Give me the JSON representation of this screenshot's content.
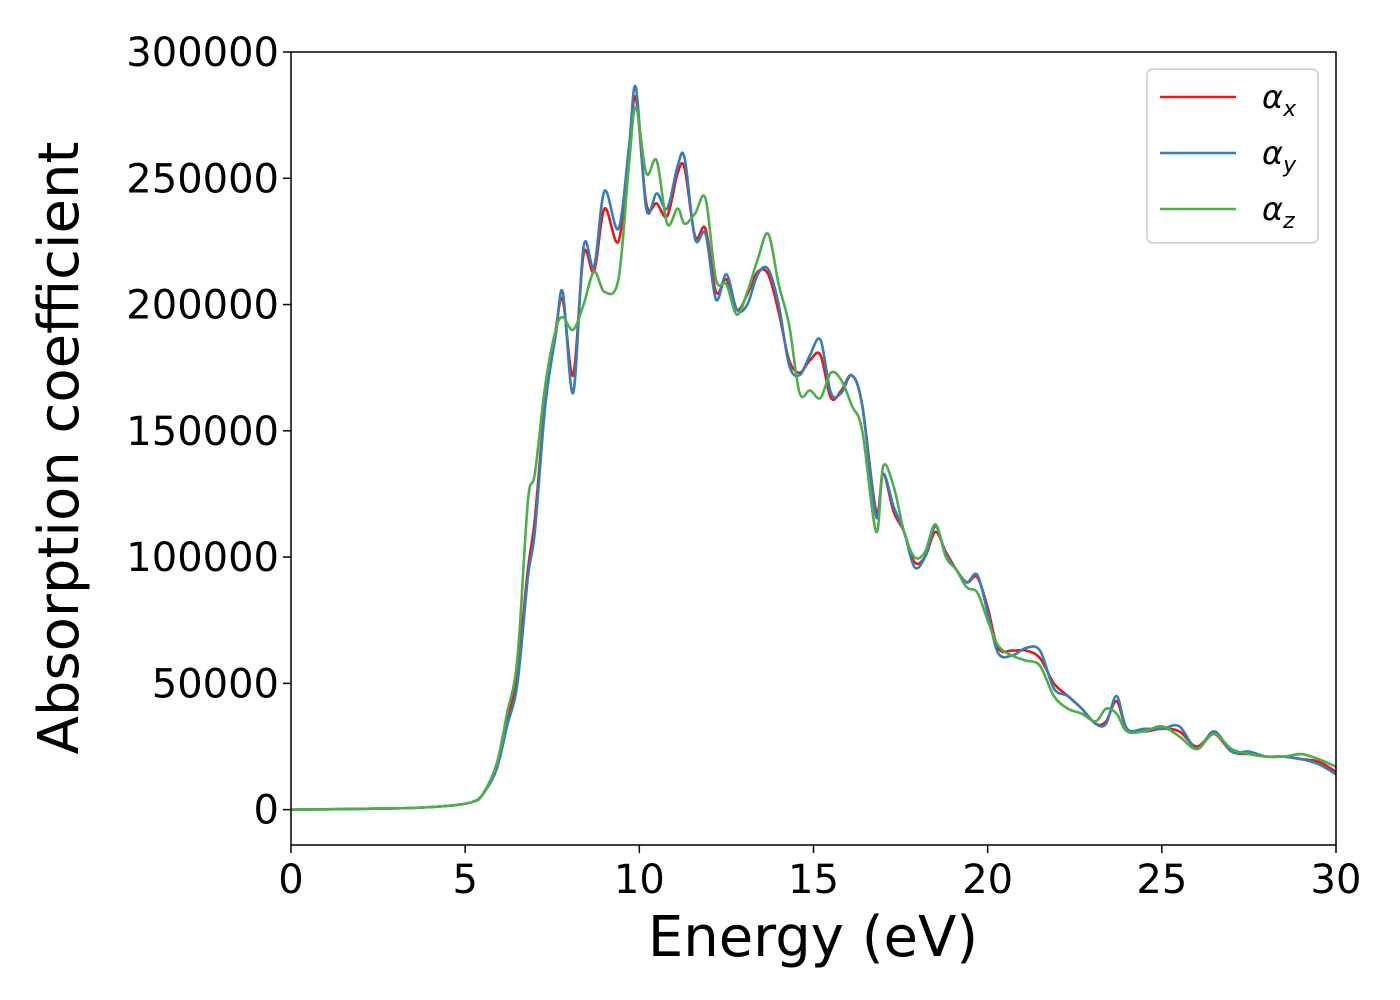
{
  "chart_data": {
    "type": "line",
    "title": "",
    "xlabel": "Energy (eV)",
    "ylabel": "Absorption coefficient",
    "xlim": [
      0,
      30
    ],
    "ylim": [
      -14000,
      300000
    ],
    "grid": false,
    "legend_position": "top-right",
    "x_ticks": [
      "0",
      "5",
      "10",
      "15",
      "20",
      "25",
      "30"
    ],
    "y_ticks": [
      "0",
      "50000",
      "100000",
      "150000",
      "200000",
      "250000",
      "300000"
    ],
    "series": [
      {
        "name": "α",
        "subscript": "x",
        "color": "#e41a1c",
        "x": [
          0,
          3,
          4.5,
          5.2,
          5.5,
          5.9,
          6.2,
          6.5,
          6.8,
          7.0,
          7.3,
          7.6,
          7.8,
          8.1,
          8.4,
          8.7,
          9.0,
          9.4,
          9.7,
          9.9,
          10.2,
          10.5,
          10.8,
          11.1,
          11.3,
          11.6,
          11.9,
          12.2,
          12.5,
          12.8,
          13.1,
          13.4,
          13.7,
          14.0,
          14.3,
          14.6,
          14.9,
          15.2,
          15.5,
          15.8,
          16.1,
          16.4,
          16.8,
          17.0,
          17.3,
          17.6,
          17.9,
          18.2,
          18.5,
          18.8,
          19.1,
          19.4,
          19.7,
          20.0,
          20.3,
          20.7,
          21.1,
          21.5,
          21.9,
          22.3,
          22.7,
          23.1,
          23.4,
          23.7,
          24.0,
          24.5,
          25.0,
          25.5,
          26.0,
          26.5,
          27.0,
          27.5,
          28.0,
          28.5,
          29.0,
          29.5,
          30.0
        ],
        "y": [
          0,
          500,
          1500,
          3000,
          6000,
          16000,
          34000,
          55000,
          95000,
          115000,
          162000,
          190000,
          202000,
          172000,
          220000,
          213000,
          238000,
          225000,
          260000,
          282000,
          240000,
          240000,
          235000,
          252000,
          254000,
          227000,
          230000,
          205000,
          210000,
          198000,
          204000,
          213000,
          212000,
          197000,
          178000,
          173000,
          178000,
          180000,
          163000,
          166000,
          172000,
          160000,
          118000,
          133000,
          118000,
          110000,
          98000,
          100000,
          110000,
          102000,
          95000,
          90000,
          92000,
          80000,
          64000,
          63000,
          63000,
          60000,
          50000,
          45000,
          40000,
          34000,
          35000,
          43000,
          32000,
          31000,
          32000,
          31000,
          25000,
          30000,
          23000,
          22000,
          21000,
          21000,
          20000,
          19000,
          15000
        ]
      },
      {
        "name": "α",
        "subscript": "y",
        "color": "#377eb8",
        "x": [
          0,
          3,
          4.5,
          5.2,
          5.5,
          5.9,
          6.2,
          6.5,
          6.8,
          7.0,
          7.3,
          7.6,
          7.8,
          8.1,
          8.4,
          8.7,
          9.0,
          9.4,
          9.7,
          9.9,
          10.2,
          10.5,
          10.8,
          11.1,
          11.3,
          11.6,
          11.9,
          12.2,
          12.5,
          12.8,
          13.1,
          13.4,
          13.7,
          14.0,
          14.3,
          14.6,
          14.9,
          15.2,
          15.5,
          15.8,
          16.1,
          16.4,
          16.8,
          17.0,
          17.3,
          17.6,
          17.9,
          18.2,
          18.5,
          18.8,
          19.1,
          19.4,
          19.7,
          20.0,
          20.3,
          20.7,
          21.1,
          21.5,
          21.9,
          22.3,
          22.7,
          23.1,
          23.4,
          23.7,
          24.0,
          24.5,
          25.0,
          25.5,
          26.0,
          26.5,
          27.0,
          27.5,
          28.0,
          28.5,
          29.0,
          29.5,
          30.0
        ],
        "y": [
          0,
          500,
          1500,
          3000,
          6000,
          16000,
          33000,
          50000,
          92000,
          110000,
          160000,
          188000,
          205000,
          165000,
          223000,
          215000,
          245000,
          230000,
          262000,
          286000,
          238000,
          244000,
          238000,
          255000,
          258000,
          226000,
          228000,
          202000,
          212000,
          198000,
          200000,
          212000,
          214000,
          200000,
          176000,
          172000,
          180000,
          186000,
          165000,
          165000,
          172000,
          160000,
          116000,
          133000,
          120000,
          110000,
          96000,
          100000,
          112000,
          101000,
          95000,
          90000,
          93000,
          78000,
          62000,
          61000,
          64000,
          63000,
          48000,
          45000,
          40000,
          34000,
          34000,
          45000,
          32000,
          32000,
          32000,
          33000,
          24000,
          31000,
          23000,
          23000,
          21000,
          21000,
          20000,
          18000,
          14000
        ]
      },
      {
        "name": "α",
        "subscript": "z",
        "color": "#4daf4a",
        "x": [
          0,
          3,
          4.5,
          5.2,
          5.5,
          5.9,
          6.2,
          6.5,
          6.8,
          7.0,
          7.3,
          7.6,
          7.8,
          8.1,
          8.4,
          8.7,
          9.0,
          9.4,
          9.7,
          9.9,
          10.2,
          10.5,
          10.8,
          11.1,
          11.3,
          11.6,
          11.9,
          12.2,
          12.5,
          12.8,
          13.1,
          13.4,
          13.7,
          14.0,
          14.3,
          14.6,
          14.9,
          15.2,
          15.5,
          15.8,
          16.1,
          16.4,
          16.8,
          17.0,
          17.3,
          17.6,
          17.9,
          18.2,
          18.5,
          18.8,
          19.1,
          19.4,
          19.7,
          20.0,
          20.3,
          20.7,
          21.1,
          21.5,
          21.9,
          22.3,
          22.7,
          23.1,
          23.4,
          23.7,
          24.0,
          24.5,
          25.0,
          25.5,
          26.0,
          26.5,
          27.0,
          27.5,
          28.0,
          28.5,
          29.0,
          29.5,
          30.0
        ],
        "y": [
          0,
          500,
          1500,
          3000,
          6000,
          18000,
          38000,
          60000,
          122000,
          133000,
          168000,
          190000,
          195000,
          190000,
          200000,
          213000,
          205000,
          210000,
          255000,
          278000,
          252000,
          257000,
          232000,
          238000,
          232000,
          236000,
          242000,
          210000,
          208000,
          196000,
          205000,
          218000,
          228000,
          208000,
          192000,
          165000,
          166000,
          163000,
          173000,
          170000,
          160000,
          150000,
          110000,
          136000,
          128000,
          110000,
          100000,
          102000,
          113000,
          100000,
          95000,
          88000,
          86000,
          75000,
          65000,
          61000,
          59000,
          57000,
          45000,
          40000,
          38000,
          35000,
          40000,
          38000,
          31000,
          31000,
          33000,
          29000,
          24000,
          30000,
          24000,
          22000,
          21000,
          21000,
          22000,
          20000,
          17000
        ]
      }
    ]
  }
}
